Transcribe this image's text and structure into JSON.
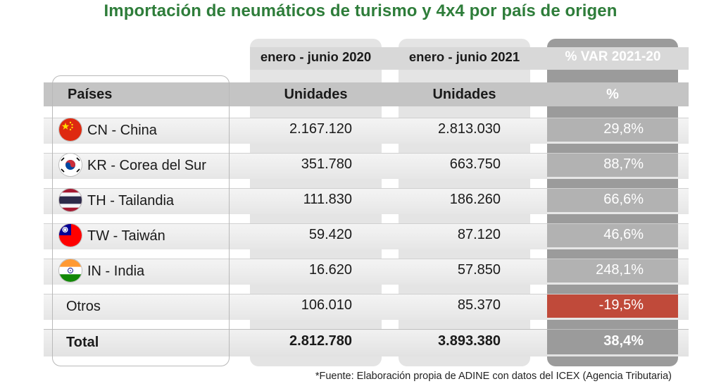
{
  "title": "Importación de neumáticos de turismo y 4x4 por país de origen",
  "chart_data": {
    "type": "table",
    "periods": [
      "enero - junio 2020",
      "enero - junio 2021",
      "% VAR 2021-20"
    ],
    "columns": [
      "Países",
      "Unidades",
      "Unidades",
      "%"
    ],
    "rows": [
      {
        "country": "CN - China",
        "flag": "china-flag-icon",
        "y2020": "2.167.120",
        "y2021": "2.813.030",
        "var": "29,8%"
      },
      {
        "country": "KR - Corea del Sur",
        "flag": "south-korea-flag-icon",
        "y2020": "351.780",
        "y2021": "663.750",
        "var": "88,7%"
      },
      {
        "country": "TH - Tailandia",
        "flag": "thailand-flag-icon",
        "y2020": "111.830",
        "y2021": "186.260",
        "var": "66,6%"
      },
      {
        "country": "TW - Taiwán",
        "flag": "taiwan-flag-icon",
        "y2020": "59.420",
        "y2021": "87.120",
        "var": "46,6%"
      },
      {
        "country": "IN - India",
        "flag": "india-flag-icon",
        "y2020": "16.620",
        "y2021": "57.850",
        "var": "248,1%"
      },
      {
        "country": "Otros",
        "flag": "",
        "y2020": "106.010",
        "y2021": "85.370",
        "var": "-19,5%"
      }
    ],
    "total": {
      "label": "Total",
      "y2020": "2.812.780",
      "y2021": "3.893.380",
      "var": "38,4%"
    },
    "colors": {
      "title": "#2e7d3a",
      "negative": "#c04a3a",
      "var_column": "#9b9b9b"
    }
  },
  "source": "*Fuente: Elaboración propia de ADINE con datos del ICEX (Agencia Tributaria)"
}
